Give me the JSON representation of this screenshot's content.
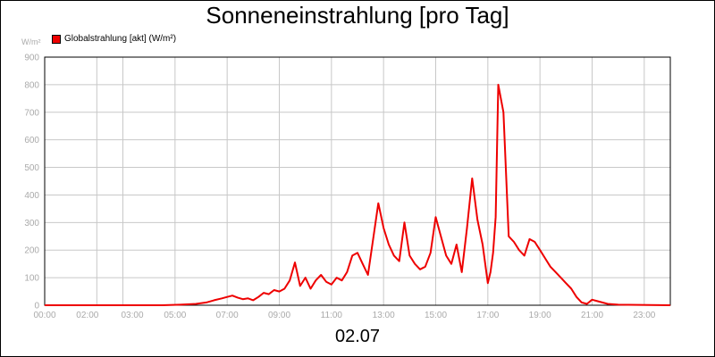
{
  "chart_data": {
    "type": "line",
    "title": "Sonneneinstrahlung [pro Tag]",
    "xlabel": "02.07",
    "ylabel": "W/m²",
    "ylim": [
      0,
      900
    ],
    "xlim": [
      0,
      24
    ],
    "y_ticks": [
      0,
      100,
      200,
      300,
      400,
      500,
      600,
      700,
      800,
      900
    ],
    "y_tick_labels": [
      "0",
      "100",
      "200",
      "300",
      "400",
      "500",
      "600",
      "700",
      "800",
      "900"
    ],
    "x_ticks": [
      0,
      2,
      3,
      5,
      7,
      9,
      11,
      13,
      15,
      17,
      19,
      21,
      23
    ],
    "x_tick_labels": [
      "00:00",
      "02:00",
      "03:00",
      "05:00",
      "07:00",
      "09:00",
      "11:00",
      "13:00",
      "15:00",
      "17:00",
      "19:00",
      "21:00",
      "23:00"
    ],
    "grid": true,
    "legend_position": "top-left",
    "series": [
      {
        "name": "Globalstrahlung [akt] (W/m²)",
        "color": "#ee0000",
        "x": [
          0,
          4.5,
          5.2,
          5.8,
          6.2,
          6.5,
          6.8,
          7.0,
          7.2,
          7.4,
          7.6,
          7.8,
          8.0,
          8.2,
          8.4,
          8.6,
          8.8,
          9.0,
          9.2,
          9.4,
          9.6,
          9.8,
          10.0,
          10.2,
          10.4,
          10.6,
          10.8,
          11.0,
          11.2,
          11.4,
          11.6,
          11.8,
          12.0,
          12.2,
          12.4,
          12.6,
          12.8,
          13.0,
          13.2,
          13.4,
          13.6,
          13.8,
          14.0,
          14.2,
          14.4,
          14.6,
          14.8,
          15.0,
          15.2,
          15.4,
          15.6,
          15.8,
          16.0,
          16.2,
          16.4,
          16.6,
          16.8,
          17.0,
          17.1,
          17.2,
          17.3,
          17.4,
          17.6,
          17.8,
          18.0,
          18.2,
          18.4,
          18.6,
          18.8,
          19.0,
          19.2,
          19.4,
          19.6,
          19.8,
          20.0,
          20.2,
          20.4,
          20.6,
          20.8,
          21.0,
          21.2,
          21.6,
          22.0,
          24.0
        ],
        "y": [
          0,
          0,
          2,
          5,
          10,
          18,
          25,
          30,
          35,
          28,
          22,
          25,
          18,
          30,
          45,
          40,
          55,
          50,
          60,
          90,
          155,
          70,
          100,
          60,
          90,
          110,
          85,
          75,
          100,
          90,
          120,
          180,
          190,
          150,
          110,
          240,
          370,
          280,
          220,
          180,
          160,
          300,
          180,
          150,
          130,
          140,
          190,
          320,
          250,
          180,
          150,
          220,
          120,
          280,
          460,
          310,
          220,
          80,
          120,
          190,
          320,
          800,
          700,
          250,
          230,
          200,
          180,
          240,
          230,
          200,
          170,
          140,
          120,
          100,
          80,
          60,
          30,
          10,
          5,
          20,
          15,
          5,
          2,
          0
        ]
      }
    ]
  }
}
